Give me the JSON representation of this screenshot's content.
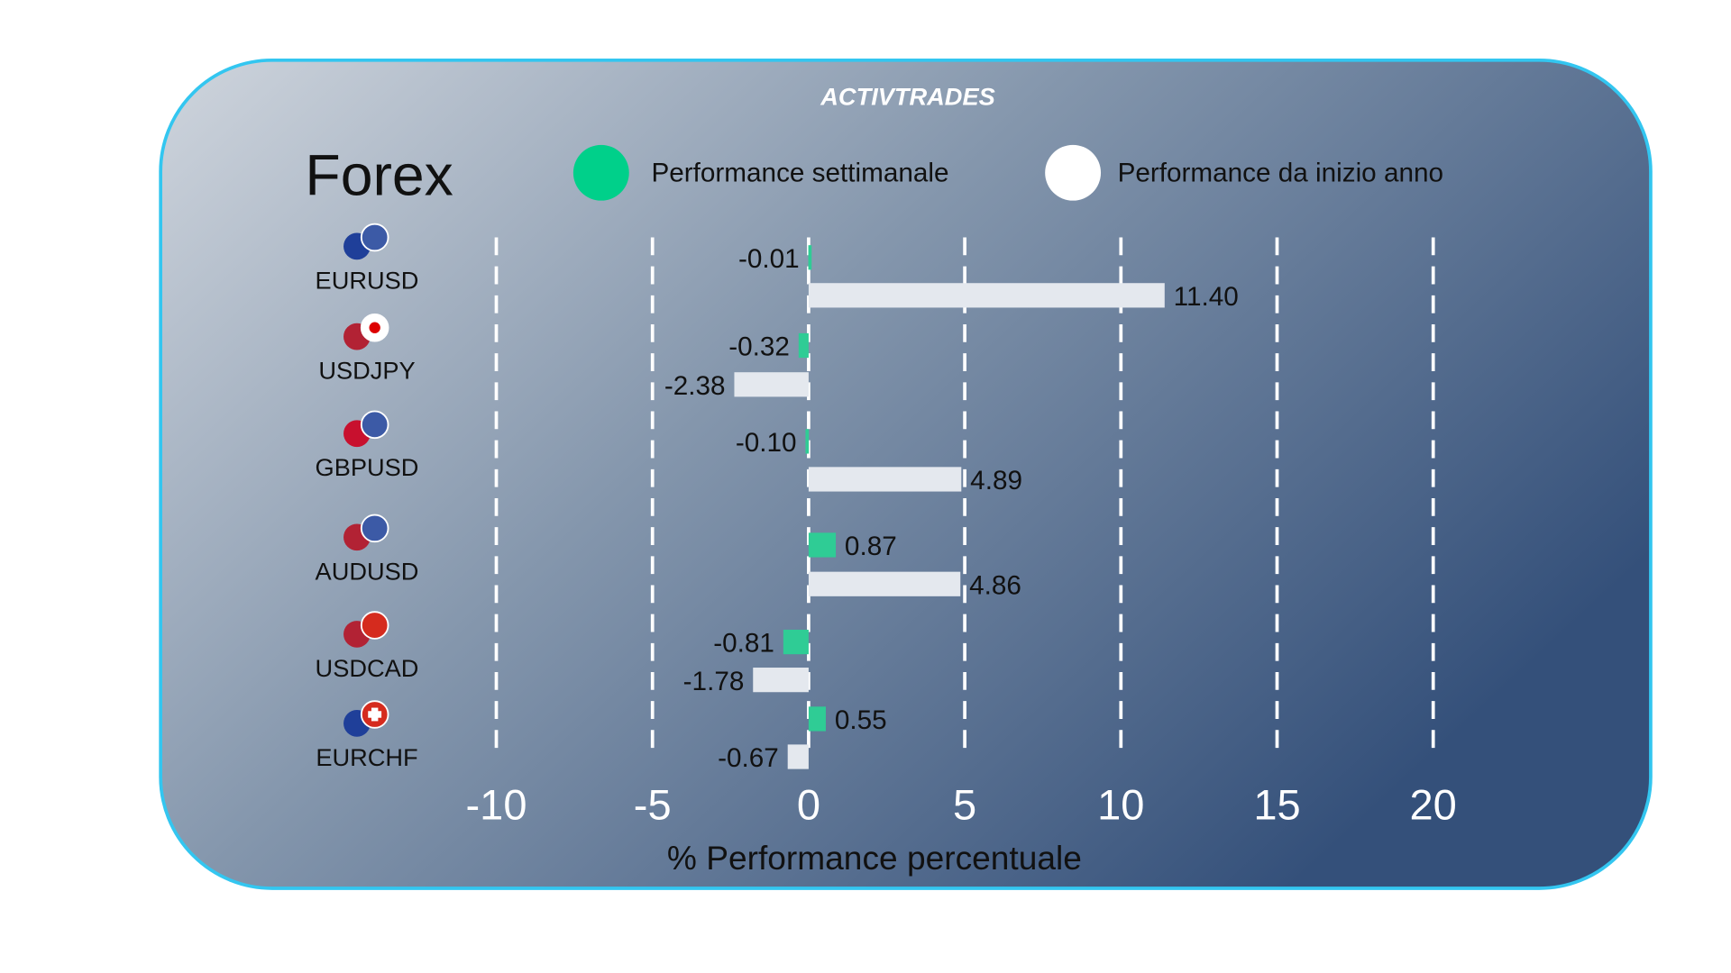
{
  "brand": "ACTIVTRADES",
  "colors": {
    "weekly": "#2fcc95",
    "ytd": "#e4e8ee",
    "border": "#33c6f0",
    "bg_left": "#c9d0d9",
    "bg_right": "#3a5478"
  },
  "chart_data": {
    "type": "bar",
    "orientation": "horizontal",
    "title": "Forex",
    "xlabel": "% Performance percentuale",
    "xlim": [
      -10,
      20
    ],
    "xticks": [
      -10,
      -5,
      0,
      5,
      10,
      15,
      20
    ],
    "grid": true,
    "legend_placement": "top",
    "categories": [
      "EURUSD",
      "USDJPY",
      "GBPUSD",
      "AUDUSD",
      "USDCAD",
      "EURCHF"
    ],
    "series": [
      {
        "name": "Performance settimanale",
        "color": "#2fcc95",
        "values": [
          -0.01,
          -0.32,
          -0.1,
          0.87,
          -0.81,
          0.55
        ],
        "labels": [
          "-0.01",
          "-0.32",
          "-0.10",
          "0.87",
          "-0.81",
          "0.55"
        ]
      },
      {
        "name": "Performance da inizio anno",
        "color": "#e4e8ee",
        "values": [
          11.4,
          -2.38,
          4.89,
          4.86,
          -1.78,
          -0.67
        ],
        "labels": [
          "11.40",
          "-2.38",
          "4.89",
          "4.86",
          "-1.78",
          "-0.67"
        ]
      }
    ],
    "flag_icons": [
      "eu-us-flags-icon",
      "us-jp-flags-icon",
      "gb-us-flags-icon",
      "au-us-flags-icon",
      "us-ca-flags-icon",
      "eu-ch-flags-icon"
    ]
  }
}
